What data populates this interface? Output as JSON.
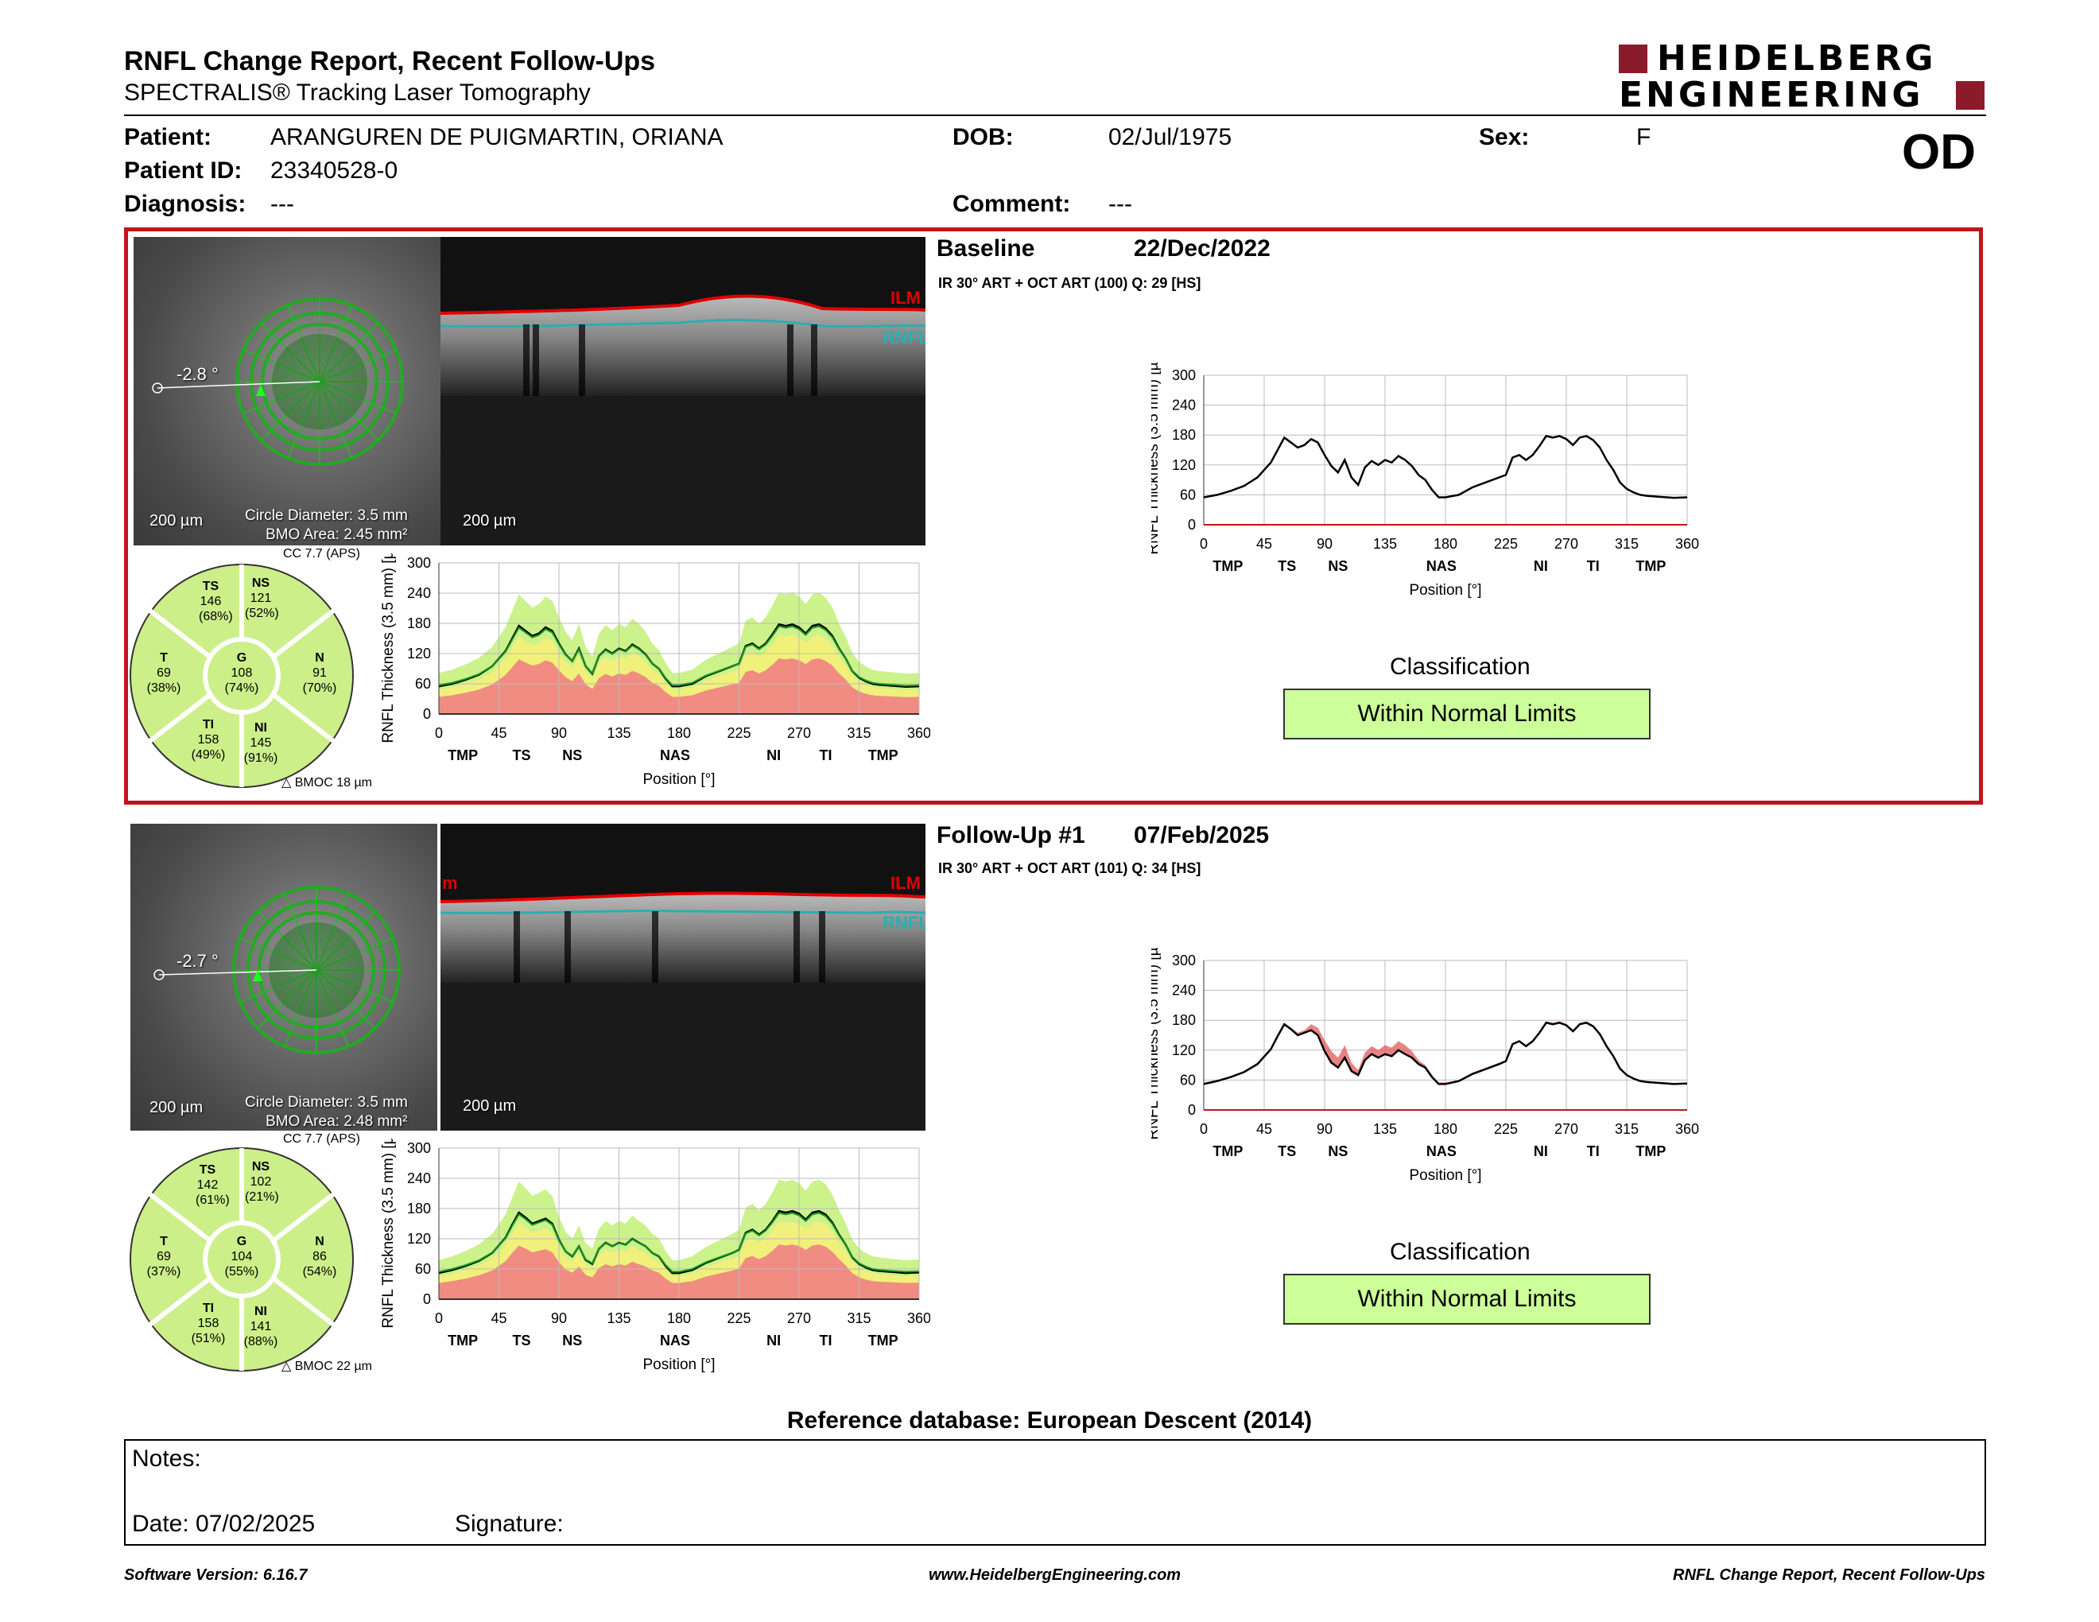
{
  "header": {
    "title": "RNFL Change Report, Recent Follow-Ups",
    "subtitle": "SPECTRALIS® Tracking Laser Tomography",
    "logo_line1": "HEIDELBERG",
    "logo_line2": "ENGINEERING",
    "eye": "OD"
  },
  "patient": {
    "patient_label": "Patient:",
    "patient_name": "ARANGUREN DE PUIGMARTIN, ORIANA",
    "id_label": "Patient ID:",
    "id": "23340528-0",
    "diagnosis_label": "Diagnosis:",
    "diagnosis": "---",
    "dob_label": "DOB:",
    "dob": "02/Jul/1975",
    "comment_label": "Comment:",
    "comment": "---",
    "sex_label": "Sex:",
    "sex": "F"
  },
  "exams": [
    {
      "label": "Baseline",
      "date": "22/Dec/2022",
      "protocol": "IR 30° ART + OCT ART (100) Q: 29 [HS]",
      "angle": "-2.8 °",
      "scale": "200 µm",
      "circle": "Circle Diameter: 3.5 mm",
      "bmo": "BMO Area: 2.45 mm²",
      "cc": "CC 7.7 (APS)",
      "bmoc": "BMOC 18 µm",
      "ilm": "ILM",
      "rnfl": "RNFL",
      "ilm_partial": "",
      "sectors": {
        "TS": {
          "name": "TS",
          "value": "146",
          "pct": "(68%)"
        },
        "NS": {
          "name": "NS",
          "value": "121",
          "pct": "(52%)"
        },
        "T": {
          "name": "T",
          "value": "69",
          "pct": "(38%)"
        },
        "G": {
          "name": "G",
          "value": "108",
          "pct": "(74%)"
        },
        "N": {
          "name": "N",
          "value": "91",
          "pct": "(70%)"
        },
        "TI": {
          "name": "TI",
          "value": "158",
          "pct": "(49%)"
        },
        "NI": {
          "name": "NI",
          "value": "145",
          "pct": "(91%)"
        }
      },
      "classification_label": "Classification",
      "classification": "Within Normal Limits"
    },
    {
      "label": "Follow-Up #1",
      "date": "07/Feb/2025",
      "protocol": "IR 30° ART + OCT ART (101) Q: 34 [HS]",
      "angle": "-2.7 °",
      "scale": "200 µm",
      "circle": "Circle Diameter: 3.5 mm",
      "bmo": "BMO Area: 2.48 mm²",
      "cc": "CC 7.7 (APS)",
      "bmoc": "BMOC 22 µm",
      "ilm": "ILM",
      "rnfl": "RNFL",
      "ilm_partial": "m",
      "sectors": {
        "TS": {
          "name": "TS",
          "value": "142",
          "pct": "(61%)"
        },
        "NS": {
          "name": "NS",
          "value": "102",
          "pct": "(21%)"
        },
        "T": {
          "name": "T",
          "value": "69",
          "pct": "(37%)"
        },
        "G": {
          "name": "G",
          "value": "104",
          "pct": "(55%)"
        },
        "N": {
          "name": "N",
          "value": "86",
          "pct": "(54%)"
        },
        "TI": {
          "name": "TI",
          "value": "158",
          "pct": "(51%)"
        },
        "NI": {
          "name": "NI",
          "value": "141",
          "pct": "(88%)"
        }
      },
      "classification_label": "Classification",
      "classification": "Within Normal Limits"
    }
  ],
  "chart_data": [
    {
      "type": "line",
      "title": "",
      "xlabel": "Position [°]",
      "ylabel": "RNFL Thickness (3.5 mm) [µm]",
      "xlim": [
        0,
        360
      ],
      "ylim": [
        0,
        300
      ],
      "xticks": [
        0,
        45,
        90,
        135,
        180,
        225,
        270,
        315,
        360
      ],
      "yticks": [
        0,
        60,
        120,
        180,
        240,
        300
      ],
      "sector_labels": [
        "TMP",
        "TS",
        "NS",
        "NAS",
        "NI",
        "TI",
        "TMP"
      ],
      "sector_positions": [
        18,
        62,
        100,
        177,
        251,
        290,
        333
      ],
      "x": [
        0,
        10,
        20,
        30,
        40,
        50,
        55,
        60,
        65,
        70,
        75,
        80,
        85,
        90,
        95,
        100,
        105,
        110,
        115,
        120,
        125,
        130,
        135,
        140,
        145,
        150,
        155,
        160,
        165,
        170,
        175,
        180,
        190,
        200,
        210,
        220,
        225,
        230,
        235,
        240,
        245,
        250,
        255,
        260,
        265,
        270,
        275,
        280,
        285,
        290,
        295,
        300,
        305,
        310,
        315,
        320,
        325,
        330,
        340,
        350,
        360
      ],
      "series": [
        {
          "values": [
            55,
            60,
            68,
            78,
            95,
            125,
            150,
            175,
            165,
            155,
            160,
            172,
            165,
            140,
            118,
            105,
            130,
            95,
            80,
            115,
            128,
            120,
            130,
            125,
            138,
            130,
            118,
            100,
            90,
            70,
            55,
            55,
            60,
            75,
            85,
            95,
            100,
            135,
            140,
            130,
            140,
            158,
            178,
            175,
            178,
            172,
            160,
            175,
            178,
            170,
            155,
            130,
            110,
            85,
            72,
            65,
            60,
            58,
            56,
            54,
            55
          ]
        }
      ]
    },
    {
      "type": "line",
      "title": "",
      "xlabel": "Position [°]",
      "ylabel": "RNFL Thickness (3.5 mm) [µm]",
      "xlim": [
        0,
        360
      ],
      "ylim": [
        0,
        300
      ],
      "xticks": [
        0,
        45,
        90,
        135,
        180,
        225,
        270,
        315,
        360
      ],
      "yticks": [
        0,
        60,
        120,
        180,
        240,
        300
      ],
      "sector_labels": [
        "TMP",
        "TS",
        "NS",
        "NAS",
        "NI",
        "TI",
        "TMP"
      ],
      "sector_positions": [
        18,
        62,
        100,
        177,
        251,
        290,
        333
      ],
      "x": [
        0,
        10,
        20,
        30,
        40,
        50,
        55,
        60,
        65,
        70,
        75,
        80,
        85,
        90,
        95,
        100,
        105,
        110,
        115,
        120,
        125,
        130,
        135,
        140,
        145,
        150,
        155,
        160,
        165,
        170,
        175,
        180,
        190,
        200,
        210,
        220,
        225,
        230,
        235,
        240,
        245,
        250,
        255,
        260,
        265,
        270,
        275,
        280,
        285,
        290,
        295,
        300,
        305,
        310,
        315,
        320,
        325,
        330,
        340,
        350,
        360
      ],
      "series": [
        {
          "values": [
            52,
            58,
            66,
            76,
            92,
            122,
            148,
            172,
            162,
            150,
            155,
            160,
            150,
            118,
            95,
            85,
            105,
            78,
            70,
            100,
            112,
            105,
            112,
            108,
            120,
            112,
            105,
            92,
            85,
            66,
            52,
            52,
            58,
            72,
            82,
            92,
            98,
            132,
            138,
            128,
            138,
            155,
            175,
            172,
            175,
            170,
            158,
            172,
            175,
            168,
            152,
            128,
            108,
            83,
            70,
            63,
            58,
            56,
            54,
            52,
            53
          ]
        }
      ]
    }
  ]
}
